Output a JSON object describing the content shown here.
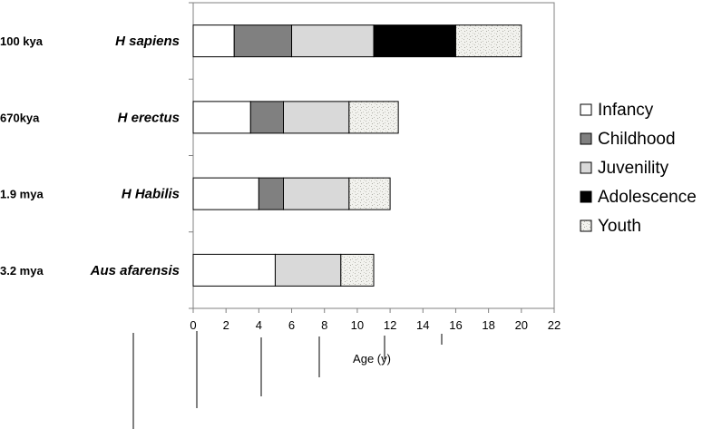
{
  "chart_data": {
    "type": "bar",
    "orientation": "horizontal",
    "stacked": true,
    "xlabel": "Age (y)",
    "xlim": [
      0,
      22
    ],
    "xticks": [
      0,
      2,
      4,
      6,
      8,
      10,
      12,
      14,
      16,
      18,
      20,
      22
    ],
    "grid": false,
    "legend_position": "right",
    "categories": [
      {
        "era": "100 kya",
        "species": "H sapiens"
      },
      {
        "era": "670kya",
        "species": "H erectus"
      },
      {
        "era": "1.9 mya",
        "species": "H Habilis"
      },
      {
        "era": "3.2 mya",
        "species": "Aus afarensis"
      }
    ],
    "series": [
      {
        "name": "Infancy",
        "color": "#ffffff",
        "pattern": "none",
        "values": [
          2.5,
          3.5,
          4,
          5
        ]
      },
      {
        "name": "Childhood",
        "color": "#808080",
        "pattern": "none",
        "values": [
          3.5,
          2,
          1.5,
          0
        ]
      },
      {
        "name": "Juvenility",
        "color": "#d9d9d9",
        "pattern": "none",
        "values": [
          5,
          4,
          4,
          4
        ]
      },
      {
        "name": "Adolescence",
        "color": "#000000",
        "pattern": "none",
        "values": [
          5,
          0,
          0,
          0
        ]
      },
      {
        "name": "Youth",
        "color": "#f2f2ee",
        "pattern": "speckle",
        "values": [
          4,
          3,
          2.5,
          2
        ]
      }
    ]
  }
}
